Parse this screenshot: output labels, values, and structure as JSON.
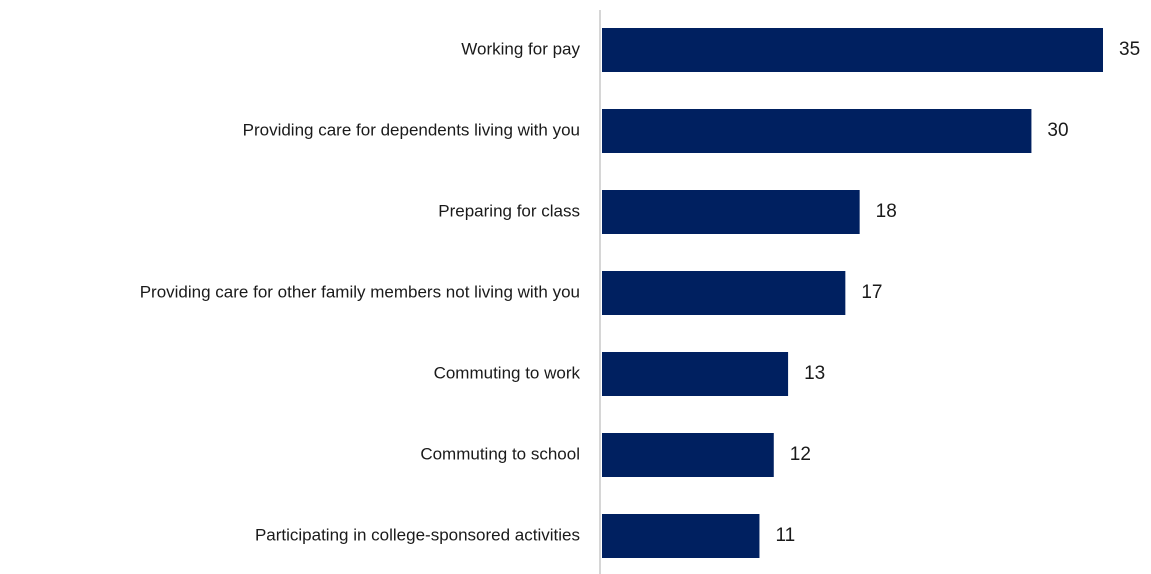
{
  "chart_data": {
    "type": "bar",
    "orientation": "horizontal",
    "categories": [
      "Working for pay",
      "Providing care for dependents living with you",
      "Preparing for class",
      "Providing care for other family members not living with you",
      "Commuting to work",
      "Commuting to school",
      "Participating in college-sponsored activities"
    ],
    "values": [
      35,
      30,
      18,
      17,
      13,
      12,
      11
    ],
    "xlim": [
      0,
      35
    ],
    "grid": false,
    "legend": "none",
    "bar_color": "#002060",
    "axis_color": "#c8c8c8",
    "text_color": "#1a1a1a"
  }
}
